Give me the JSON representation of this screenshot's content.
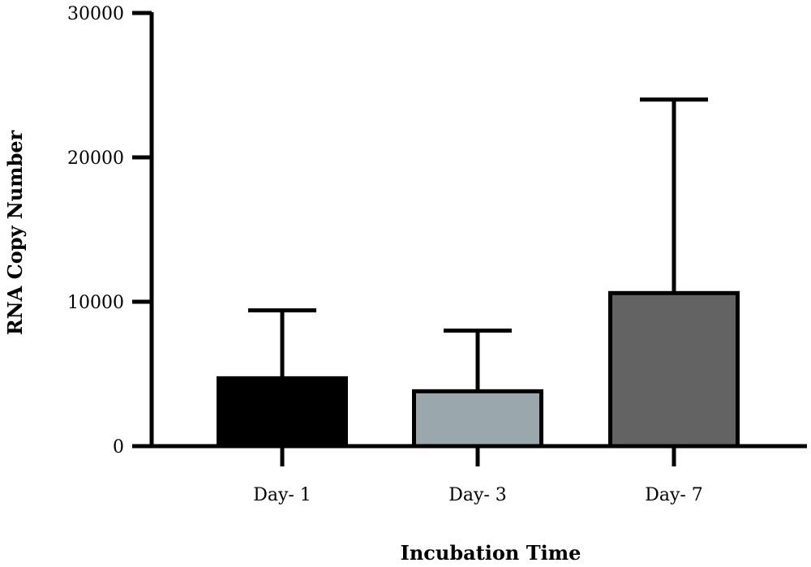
{
  "chart_data": {
    "type": "bar",
    "title": "",
    "xlabel": "Incubation Time",
    "ylabel": "RNA Copy Number",
    "categories": [
      "Day- 1",
      "Day- 3",
      "Day- 7"
    ],
    "series": [
      {
        "values": [
          4700,
          3800,
          10600
        ],
        "error_upper": [
          9400,
          8000,
          24000
        ]
      }
    ],
    "colors": [
      "#000000",
      "#9aa8ae",
      "#636363"
    ],
    "ylim": [
      0,
      30000
    ],
    "yticks": [
      0,
      10000,
      20000,
      30000
    ],
    "ytick_labels": [
      "0",
      "10000",
      "20000",
      "30000"
    ],
    "grid": false,
    "legend": "none"
  }
}
